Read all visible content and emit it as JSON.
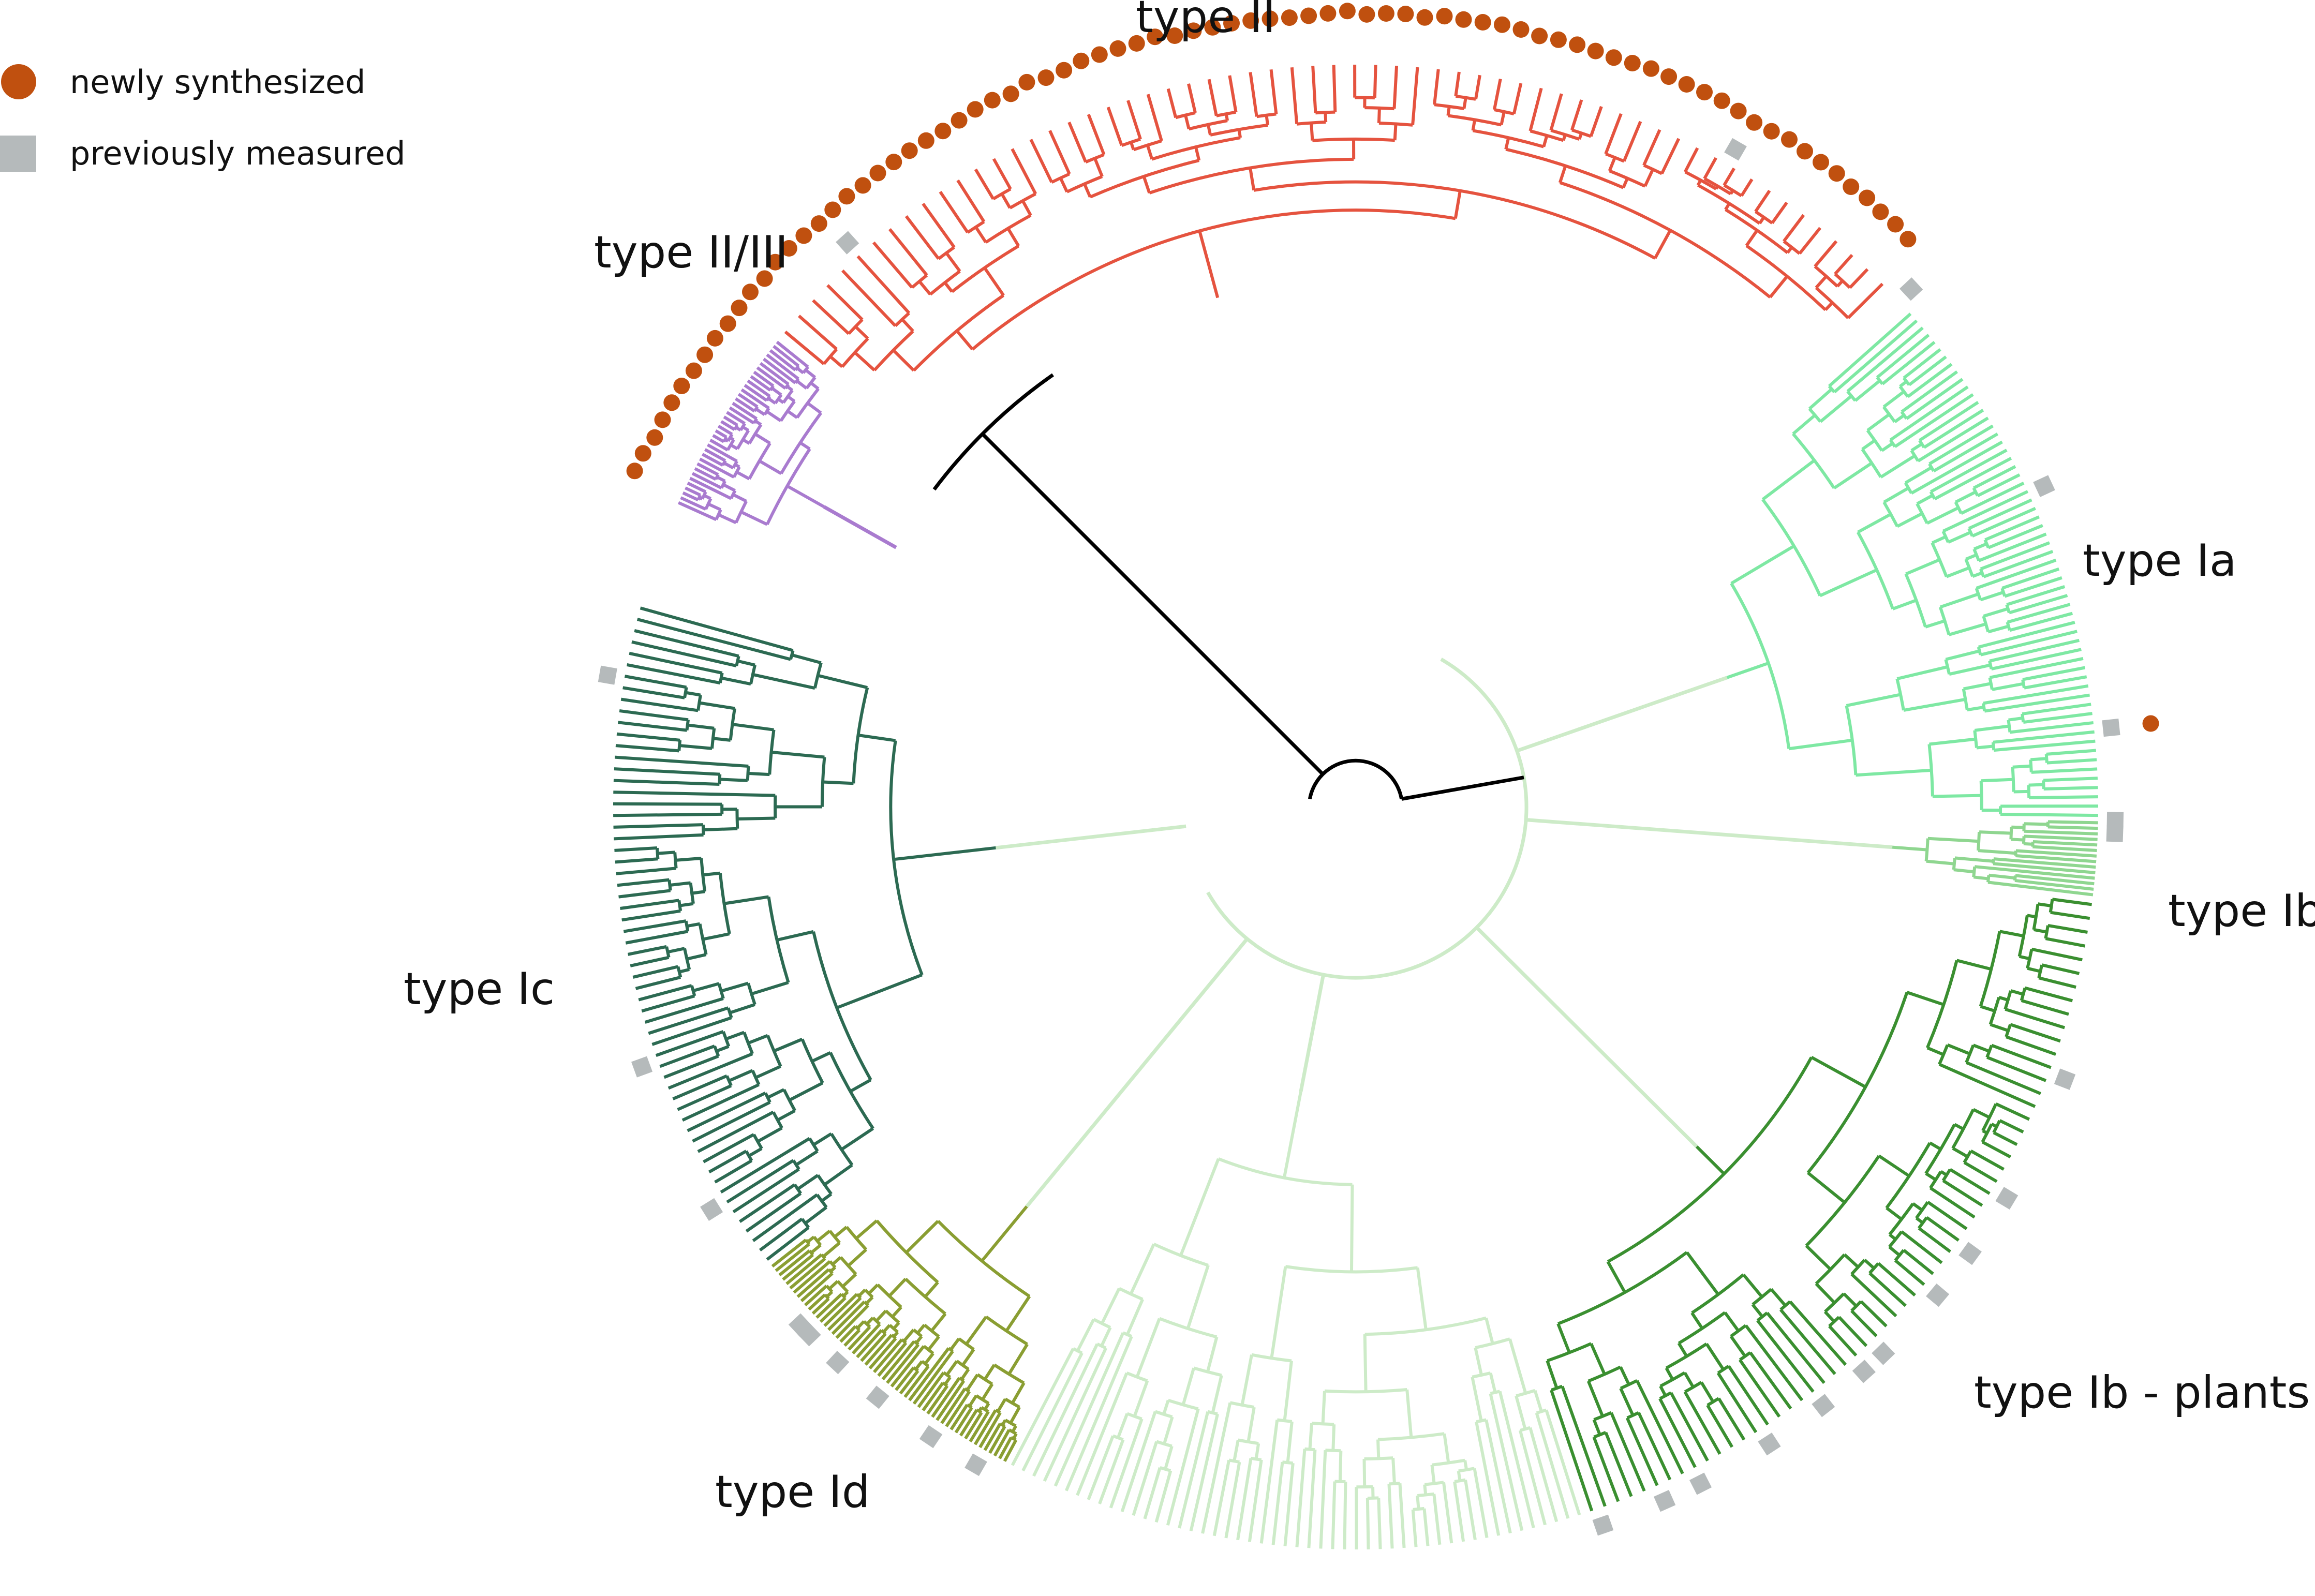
{
  "legend": {
    "items": [
      {
        "label": "newly synthesized",
        "marker": "circle",
        "color": "#c0500f"
      },
      {
        "label": "previously measured",
        "marker": "square",
        "color": "#b5babb"
      }
    ]
  },
  "clades": [
    {
      "id": "type-ii",
      "label": "type II",
      "color": "#e5533f",
      "leaves": 93
    },
    {
      "id": "type-ii-iii",
      "label": "type II/III",
      "color": "#a97bcf",
      "leaves": 36
    },
    {
      "id": "type-ia",
      "label": "type Ia",
      "color": "#7ee8a3",
      "leaves": 74
    },
    {
      "id": "type-ib",
      "label": "type Ib",
      "color": "#8fd690",
      "leaves": 14
    },
    {
      "id": "type-ib-plants",
      "label": "type Ib - plants",
      "color": "#3a8f30",
      "leaves": 130
    },
    {
      "id": "type-id",
      "label": "type Id",
      "color": "#8a9e32",
      "leaves": 55
    },
    {
      "id": "type-ic",
      "label": "type Ic",
      "color": "#2c6a52",
      "leaves": 125
    }
  ],
  "unlabeled_color": "#cdebc8",
  "root_color": "#000000"
}
